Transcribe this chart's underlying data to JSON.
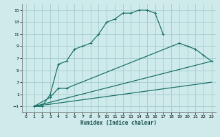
{
  "xlabel": "Humidex (Indice chaleur)",
  "bg_color": "#ceeaea",
  "grid_color": "#aad0d0",
  "line_color": "#1a7068",
  "xlim": [
    -0.5,
    23.5
  ],
  "ylim": [
    -2,
    16
  ],
  "xticks": [
    0,
    1,
    2,
    3,
    4,
    5,
    6,
    7,
    8,
    9,
    10,
    11,
    12,
    13,
    14,
    15,
    16,
    17,
    18,
    19,
    20,
    21,
    22,
    23
  ],
  "yticks": [
    -1,
    1,
    3,
    5,
    7,
    9,
    11,
    13,
    15
  ],
  "curve1_x": [
    1,
    2,
    3,
    4,
    5,
    6,
    7,
    8,
    9,
    10,
    11,
    12,
    13,
    14,
    15,
    16,
    17
  ],
  "curve1_y": [
    -1,
    -1,
    1,
    6,
    6.5,
    8.5,
    9,
    9.5,
    11,
    13,
    13.5,
    14.5,
    14.5,
    15,
    15,
    14.5,
    11
  ],
  "curve2_x": [
    1,
    3,
    4,
    5,
    19,
    20,
    21,
    22,
    23
  ],
  "curve2_y": [
    -1,
    0.5,
    2,
    2,
    9.5,
    9,
    8.5,
    7.5,
    6.5
  ],
  "curve3_x": [
    1,
    23
  ],
  "curve3_y": [
    -1,
    6.5
  ],
  "curve4_x": [
    1,
    23
  ],
  "curve4_y": [
    -1,
    3
  ]
}
